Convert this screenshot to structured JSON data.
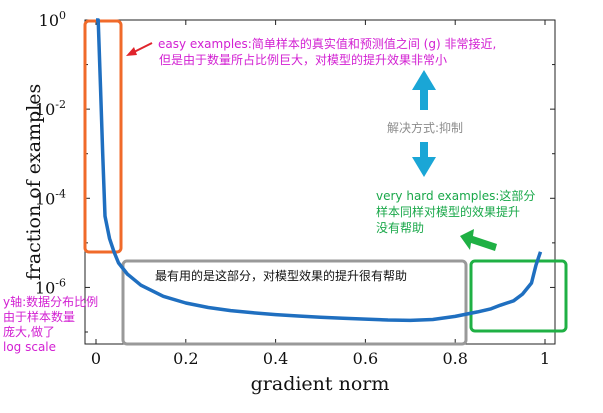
{
  "chart_data": {
    "type": "line",
    "xlabel": "gradient norm",
    "ylabel": "fraction of examples",
    "xlim": [
      0,
      1
    ],
    "ylim_log10": [
      -7,
      0
    ],
    "y_scale": "log",
    "grid": false,
    "legend": "none",
    "x_ticks": [
      "0",
      "0.2",
      "0.4",
      "0.6",
      "0.8",
      "1"
    ],
    "x_tick_values": [
      0,
      0.2,
      0.4,
      0.6,
      0.8,
      1
    ],
    "y_tick_base": "10",
    "y_tick_exponents": [
      "0",
      "-2",
      "-4",
      "-6"
    ],
    "y_tick_values": [
      0,
      -2,
      -4,
      -6
    ],
    "series": [
      {
        "color": "#1f6fc0",
        "x": [
          0.0,
          0.005,
          0.01,
          0.015,
          0.02,
          0.03,
          0.04,
          0.05,
          0.07,
          0.1,
          0.15,
          0.2,
          0.25,
          0.3,
          0.35,
          0.4,
          0.45,
          0.5,
          0.55,
          0.6,
          0.65,
          0.7,
          0.75,
          0.8,
          0.85,
          0.88,
          0.9,
          0.93,
          0.95,
          0.97,
          0.98,
          0.99
        ],
        "y_log10": [
          0.0,
          0.0,
          -1.5,
          -3.0,
          -4.4,
          -4.9,
          -5.2,
          -5.45,
          -5.7,
          -5.95,
          -6.2,
          -6.35,
          -6.45,
          -6.52,
          -6.57,
          -6.61,
          -6.64,
          -6.67,
          -6.69,
          -6.71,
          -6.73,
          -6.74,
          -6.72,
          -6.65,
          -6.55,
          -6.48,
          -6.4,
          -6.3,
          -6.15,
          -5.9,
          -5.5,
          -5.2
        ]
      }
    ]
  },
  "annotations": {
    "easy_lines": [
      "easy examples:简单样本的真实值和预测值之间 (g) 非常接近,",
      "但是由于数量所占比例巨大，对模型的提升效果非常小"
    ],
    "solution": "解决方式:抑制",
    "hard_lines": [
      "very hard examples:这部分",
      "样本同样对模型的效果提升",
      "没有帮助"
    ],
    "useful": "最有用的是这部分，对模型效果的提升很有帮助",
    "yaxis_note_lines": [
      "y轴:数据分布比例",
      "由于样本数量",
      "庞大,做了",
      "log scale"
    ]
  },
  "colors": {
    "curve": "#1f6fc0",
    "easy_box": "#f06a2a",
    "hard_box": "#1fb044",
    "useful_box": "#999999",
    "magenta_text": "#d21fd2",
    "green_text": "#1aa84a",
    "gray_text": "#8c8c8c",
    "arrow_blue": "#1aa6d6",
    "arrow_red": "#e0242c",
    "arrow_green": "#1fb044"
  }
}
